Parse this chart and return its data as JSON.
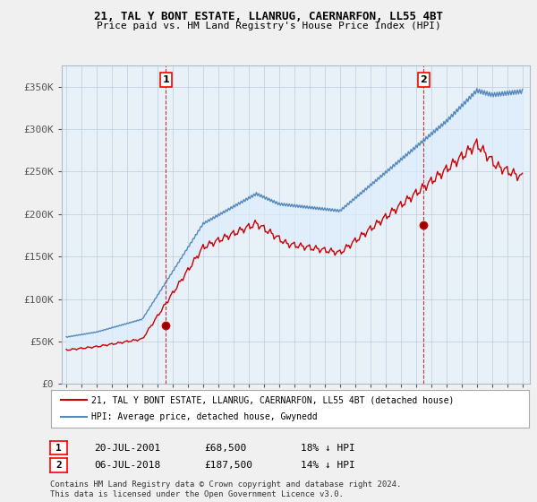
{
  "title": "21, TAL Y BONT ESTATE, LLANRUG, CAERNARFON, LL55 4BT",
  "subtitle": "Price paid vs. HM Land Registry's House Price Index (HPI)",
  "legend_line1": "21, TAL Y BONT ESTATE, LLANRUG, CAERNARFON, LL55 4BT (detached house)",
  "legend_line2": "HPI: Average price, detached house, Gwynedd",
  "annotation1_date": "20-JUL-2001",
  "annotation1_price": "£68,500",
  "annotation1_hpi": "18% ↓ HPI",
  "annotation2_date": "06-JUL-2018",
  "annotation2_price": "£187,500",
  "annotation2_hpi": "14% ↓ HPI",
  "copyright": "Contains HM Land Registry data © Crown copyright and database right 2024.\nThis data is licensed under the Open Government Licence v3.0.",
  "sale1_x": 2001.54,
  "sale1_y": 68500,
  "sale2_x": 2018.51,
  "sale2_y": 187500,
  "red_color": "#cc0000",
  "blue_color": "#5588bb",
  "fill_color": "#ddeeff",
  "background_color": "#f0f0f0",
  "plot_bg_color": "#e8f0f8",
  "ylim_min": 0,
  "ylim_max": 375000,
  "xlim_min": 1994.7,
  "xlim_max": 2025.5,
  "yticks": [
    0,
    50000,
    100000,
    150000,
    200000,
    250000,
    300000,
    350000
  ],
  "ytick_labels": [
    "£0",
    "£50K",
    "£100K",
    "£150K",
    "£200K",
    "£250K",
    "£300K",
    "£350K"
  ],
  "xticks": [
    1995,
    1996,
    1997,
    1998,
    1999,
    2000,
    2001,
    2002,
    2003,
    2004,
    2005,
    2006,
    2007,
    2008,
    2009,
    2010,
    2011,
    2012,
    2013,
    2014,
    2015,
    2016,
    2017,
    2018,
    2019,
    2020,
    2021,
    2022,
    2023,
    2024,
    2025
  ]
}
